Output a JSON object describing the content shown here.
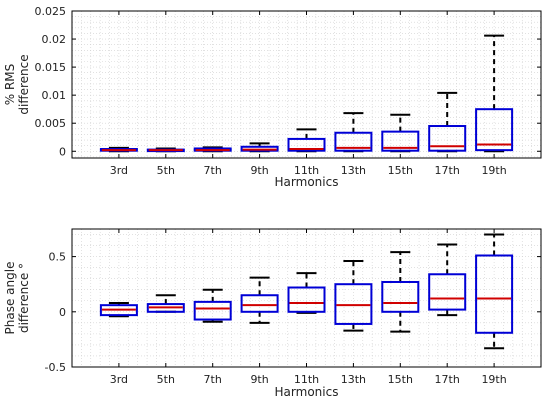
{
  "chart_data": [
    {
      "type": "box",
      "xlabel": "Harmonics",
      "ylabel_lines": [
        "% RMS",
        "difference"
      ],
      "ylim": [
        -0.0012,
        0.025
      ],
      "yticks": [
        0,
        0.005,
        0.01,
        0.015,
        0.02,
        0.025
      ],
      "ytick_labels": [
        "0",
        "0.005",
        "0.01",
        "0.015",
        "0.02",
        "0.025"
      ],
      "grid": "minor-dotted",
      "categories": [
        "3rd",
        "5th",
        "7th",
        "9th",
        "11th",
        "13th",
        "15th",
        "17th",
        "19th"
      ],
      "boxes": [
        {
          "whisker_low": 0.0,
          "q1": 0.0001,
          "median": 0.0002,
          "q3": 0.0004,
          "whisker_high": 0.0006
        },
        {
          "whisker_low": 0.0,
          "q1": 0.0001,
          "median": 0.0002,
          "q3": 0.0003,
          "whisker_high": 0.0005
        },
        {
          "whisker_low": 0.0,
          "q1": 0.0001,
          "median": 0.0002,
          "q3": 0.0005,
          "whisker_high": 0.0007
        },
        {
          "whisker_low": 0.0,
          "q1": 0.0001,
          "median": 0.0003,
          "q3": 0.0008,
          "whisker_high": 0.0014
        },
        {
          "whisker_low": 0.0,
          "q1": 0.0001,
          "median": 0.0004,
          "q3": 0.0022,
          "whisker_high": 0.0039
        },
        {
          "whisker_low": 0.0,
          "q1": 0.0001,
          "median": 0.0006,
          "q3": 0.0033,
          "whisker_high": 0.0068
        },
        {
          "whisker_low": 0.0,
          "q1": 0.0001,
          "median": 0.0006,
          "q3": 0.0035,
          "whisker_high": 0.0065
        },
        {
          "whisker_low": 0.0,
          "q1": 0.0001,
          "median": 0.0009,
          "q3": 0.0045,
          "whisker_high": 0.0104
        },
        {
          "whisker_low": 0.0,
          "q1": 0.0002,
          "median": 0.0012,
          "q3": 0.0075,
          "whisker_high": 0.0206
        }
      ]
    },
    {
      "type": "box",
      "xlabel": "Harmonics",
      "ylabel_lines": [
        "Phase angle",
        "difference °"
      ],
      "ylim": [
        -0.5,
        0.75
      ],
      "yticks": [
        -0.5,
        0,
        0.5
      ],
      "ytick_labels": [
        "-0.5",
        "0",
        "0.5"
      ],
      "grid": "minor-dotted",
      "categories": [
        "3rd",
        "5th",
        "7th",
        "9th",
        "11th",
        "13th",
        "15th",
        "17th",
        "19th"
      ],
      "boxes": [
        {
          "whisker_low": -0.04,
          "q1": -0.03,
          "median": 0.02,
          "q3": 0.06,
          "whisker_high": 0.08
        },
        {
          "whisker_low": 0.0,
          "q1": 0.0,
          "median": 0.04,
          "q3": 0.07,
          "whisker_high": 0.15
        },
        {
          "whisker_low": -0.09,
          "q1": -0.07,
          "median": 0.03,
          "q3": 0.09,
          "whisker_high": 0.2
        },
        {
          "whisker_low": -0.1,
          "q1": 0.0,
          "median": 0.06,
          "q3": 0.15,
          "whisker_high": 0.31
        },
        {
          "whisker_low": -0.01,
          "q1": 0.0,
          "median": 0.08,
          "q3": 0.22,
          "whisker_high": 0.35
        },
        {
          "whisker_low": -0.17,
          "q1": -0.11,
          "median": 0.06,
          "q3": 0.25,
          "whisker_high": 0.46
        },
        {
          "whisker_low": -0.18,
          "q1": 0.0,
          "median": 0.08,
          "q3": 0.27,
          "whisker_high": 0.54
        },
        {
          "whisker_low": -0.03,
          "q1": 0.02,
          "median": 0.12,
          "q3": 0.34,
          "whisker_high": 0.61
        },
        {
          "whisker_low": -0.33,
          "q1": -0.19,
          "median": 0.12,
          "q3": 0.51,
          "whisker_high": 0.7
        }
      ]
    }
  ],
  "colors": {
    "box": "#0000d6",
    "median": "#d00000",
    "whisker": "#000000",
    "grid": "#cfcfcf",
    "axes": "#000000"
  }
}
